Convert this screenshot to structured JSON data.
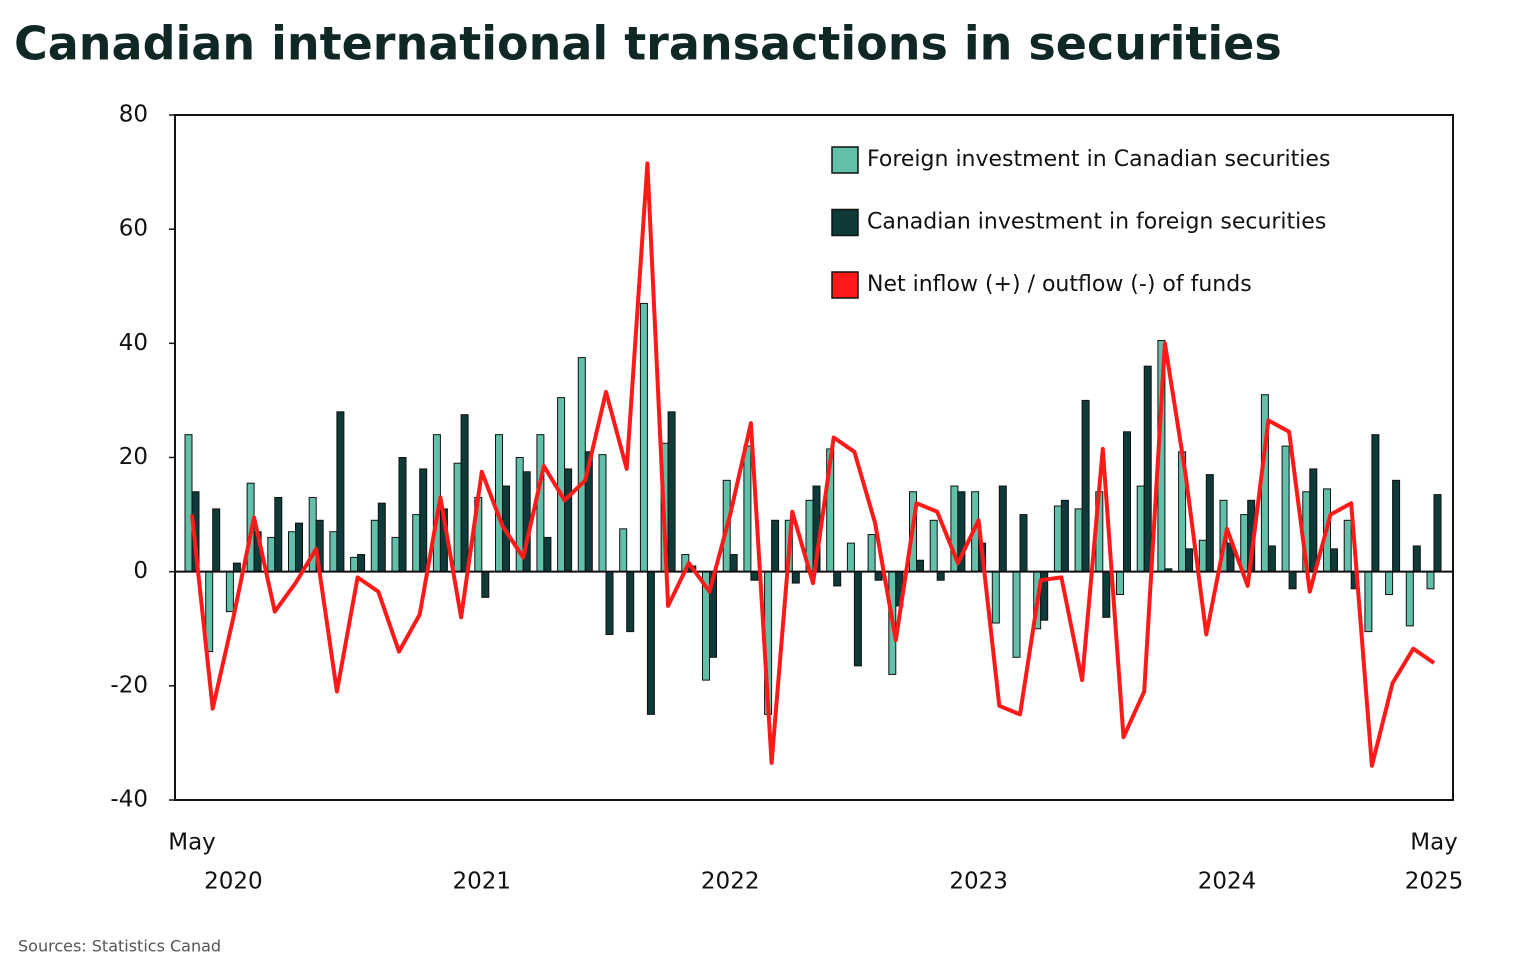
{
  "chart_data": {
    "type": "bar",
    "title": "Canadian international transactions in securities",
    "source": "Sources: Statistics Canad",
    "categories": [
      "May",
      null,
      null,
      null,
      null,
      null,
      null,
      null,
      null,
      null,
      null,
      null,
      null,
      null,
      null,
      null,
      null,
      null,
      null,
      null,
      null,
      null,
      null,
      null,
      null,
      null,
      null,
      null,
      null,
      null,
      null,
      null,
      null,
      null,
      null,
      null,
      null,
      null,
      null,
      null,
      null,
      null,
      null,
      null,
      null,
      null,
      null,
      null,
      null,
      null,
      null,
      null,
      null,
      null,
      null,
      null,
      null,
      null,
      null,
      null,
      "May"
    ],
    "years": [
      "2020",
      "2021",
      "2022",
      "2023",
      "2024",
      "2025"
    ],
    "ylim": [
      -40,
      80
    ],
    "yticks": [
      -40,
      -20,
      0,
      20,
      40,
      60,
      80
    ],
    "legend": "top-right",
    "series": [
      {
        "name": "Foreign investment in Canadian securities",
        "type": "bar",
        "color": "#62c0aa",
        "values": [
          24,
          -14,
          -7,
          15.5,
          6,
          7,
          13,
          7,
          2.5,
          9,
          6,
          10,
          24,
          19,
          13,
          24,
          20,
          24,
          30.5,
          37.5,
          20.5,
          7.5,
          47,
          22.5,
          3,
          -19,
          16,
          22,
          -25,
          9,
          12.5,
          21.5,
          5,
          6.5,
          -18,
          14,
          9,
          15,
          14,
          -9,
          -15,
          -10,
          11.5,
          11,
          14,
          -4,
          15,
          40.5,
          21,
          5.5,
          12.5,
          10,
          31,
          22,
          14,
          14.5,
          9,
          -10.5,
          -4,
          -9.5,
          -3
        ]
      },
      {
        "name": "Canadian investment in foreign securities",
        "type": "bar",
        "color": "#0f3a3a",
        "values": [
          14,
          11,
          1.5,
          7,
          13,
          8.5,
          9,
          28,
          3,
          12,
          20,
          18,
          11,
          27.5,
          -4.5,
          15,
          17.5,
          6,
          18,
          21,
          -11,
          -10.5,
          -25,
          28,
          1,
          -15,
          3,
          -1.5,
          9,
          -2,
          15,
          -2.5,
          -16.5,
          -1.5,
          -6,
          2,
          -1.5,
          14,
          5,
          15,
          10,
          -8.5,
          12.5,
          30,
          -8,
          24.5,
          36,
          0.5,
          4,
          17,
          5,
          12.5,
          4.5,
          -3,
          18,
          4,
          -3,
          24,
          16,
          4.5,
          13.5
        ]
      },
      {
        "name": "Net inflow (+) / outflow (-) of funds",
        "type": "line",
        "color": "#ff1a1a",
        "values": [
          10,
          -24,
          -8,
          9.5,
          -7,
          -2,
          4,
          -21,
          -1,
          -3.5,
          -14,
          -7.5,
          13,
          -8,
          17.5,
          8,
          2.5,
          18.5,
          12.5,
          16,
          31.5,
          18,
          71.5,
          -6,
          1.5,
          -3.5,
          10,
          26,
          -33.5,
          10.5,
          -2,
          23.5,
          21,
          8.5,
          -12,
          12,
          10.5,
          1.5,
          9,
          -23.5,
          -25,
          -1.5,
          -1,
          -19,
          21.5,
          -29,
          -21,
          40,
          17,
          -11,
          7.5,
          -2.5,
          26.5,
          24.5,
          -3.5,
          10,
          12,
          -34,
          -19.5,
          -13.5,
          -16
        ]
      }
    ]
  }
}
